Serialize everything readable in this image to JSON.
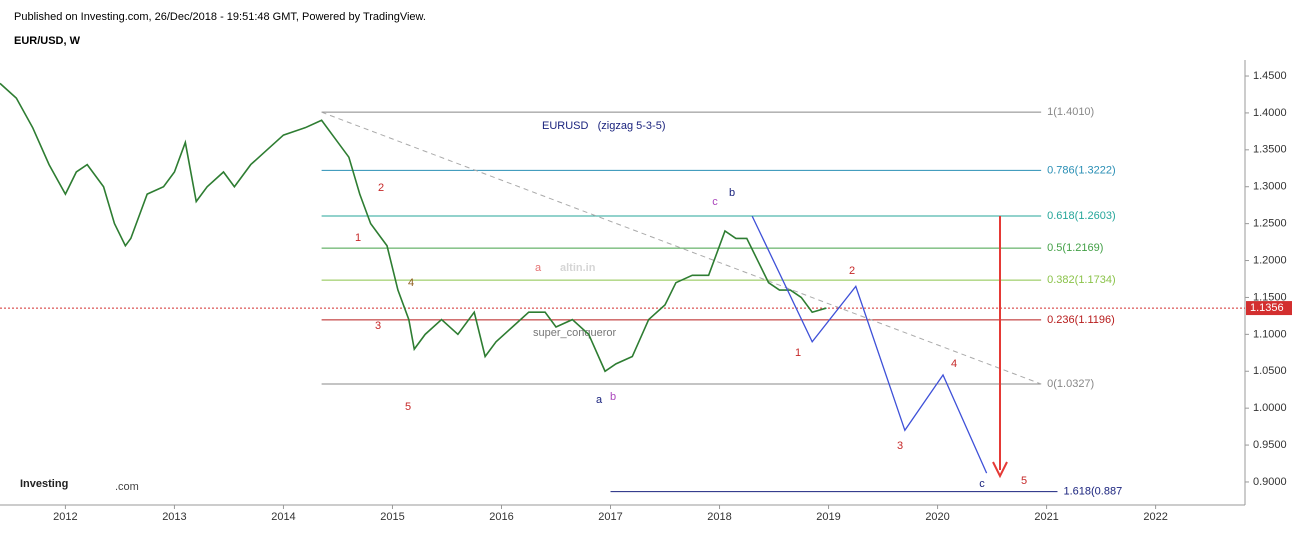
{
  "header": {
    "published": "Published on Investing.com, 26/Dec/2018 - 19:51:48 GMT, Powered by TradingView.",
    "symbol": "EUR/USD, W",
    "logo": "Investing",
    "logo_suffix": ".com"
  },
  "chart_data": {
    "type": "line",
    "title": "EURUSD   (zigzag 5-3-5)",
    "watermark": [
      "altin.in",
      "super_conqueror"
    ],
    "x": [
      2011.4,
      2011.55,
      2011.7,
      2011.85,
      2012.0,
      2012.1,
      2012.2,
      2012.35,
      2012.45,
      2012.55,
      2012.6,
      2012.75,
      2012.9,
      2013.0,
      2013.1,
      2013.2,
      2013.3,
      2013.45,
      2013.55,
      2013.7,
      2013.85,
      2014.0,
      2014.2,
      2014.35,
      2014.5,
      2014.6,
      2014.7,
      2014.8,
      2014.95,
      2015.05,
      2015.15,
      2015.2,
      2015.3,
      2015.45,
      2015.6,
      2015.75,
      2015.85,
      2015.95,
      2016.1,
      2016.25,
      2016.4,
      2016.5,
      2016.65,
      2016.8,
      2016.95,
      2017.05,
      2017.2,
      2017.35,
      2017.5,
      2017.6,
      2017.75,
      2017.9,
      2018.05,
      2018.15,
      2018.25,
      2018.35,
      2018.45,
      2018.55,
      2018.65,
      2018.75,
      2018.85,
      2018.98
    ],
    "values": [
      1.44,
      1.42,
      1.38,
      1.33,
      1.29,
      1.32,
      1.33,
      1.3,
      1.25,
      1.22,
      1.23,
      1.29,
      1.3,
      1.32,
      1.36,
      1.28,
      1.3,
      1.32,
      1.3,
      1.33,
      1.35,
      1.37,
      1.38,
      1.39,
      1.36,
      1.34,
      1.29,
      1.25,
      1.22,
      1.16,
      1.12,
      1.08,
      1.1,
      1.12,
      1.1,
      1.13,
      1.07,
      1.09,
      1.11,
      1.13,
      1.13,
      1.11,
      1.12,
      1.1,
      1.05,
      1.06,
      1.07,
      1.12,
      1.14,
      1.17,
      1.18,
      1.18,
      1.24,
      1.23,
      1.23,
      1.2,
      1.17,
      1.16,
      1.16,
      1.15,
      1.13,
      1.1356
    ],
    "color": "#2e7d32",
    "projection": {
      "x": [
        2018.3,
        2018.85,
        2019.25,
        2019.7,
        2020.05,
        2020.45
      ],
      "values": [
        1.26,
        1.09,
        1.165,
        0.97,
        1.045,
        0.912
      ],
      "color": "#3f51d8"
    },
    "last_price": {
      "value": 1.1356,
      "label": "1.1356",
      "color": "#d32f2f"
    },
    "fib_levels": [
      {
        "value": 1.401,
        "label": "1(1.4010)",
        "color": "#888888"
      },
      {
        "value": 1.3222,
        "label": "0.786(1.3222)",
        "color": "#2a8fb5"
      },
      {
        "value": 1.2603,
        "label": "0.618(1.2603)",
        "color": "#26a69a"
      },
      {
        "value": 1.2169,
        "label": "0.5(1.2169)",
        "color": "#43a047"
      },
      {
        "value": 1.1734,
        "label": "0.382(1.1734)",
        "color": "#8bc34a"
      },
      {
        "value": 1.1196,
        "label": "0.236(1.1196)",
        "color": "#b71c1c"
      },
      {
        "value": 1.0327,
        "label": "0(1.0327)",
        "color": "#888888"
      },
      {
        "value": 0.887,
        "label": "1.618(0.887",
        "color": "#1a237e"
      }
    ],
    "wave_labels": [
      "2",
      "1",
      "4",
      "3",
      "5",
      "a",
      "a",
      "b",
      "c",
      "b",
      "1",
      "2",
      "3",
      "4",
      "c",
      "5"
    ],
    "xlim": [
      2011.4,
      2022.82
    ],
    "ylim": [
      0.8688,
      1.4717
    ],
    "xticks": [
      2012,
      2013,
      2014,
      2015,
      2016,
      2017,
      2018,
      2019,
      2020,
      2021,
      2022
    ],
    "yticks": [
      {
        "value": 0.9,
        "label": "0.9000"
      },
      {
        "value": 0.95,
        "label": "0.9500"
      },
      {
        "value": 1.0,
        "label": "1.0000"
      },
      {
        "value": 1.05,
        "label": "1.0500"
      },
      {
        "value": 1.1,
        "label": "1.1000"
      },
      {
        "value": 1.15,
        "label": "1.1500"
      },
      {
        "value": 1.2,
        "label": "1.2000"
      },
      {
        "value": 1.25,
        "label": "1.2500"
      },
      {
        "value": 1.3,
        "label": "1.3000"
      },
      {
        "value": 1.35,
        "label": "1.3500"
      },
      {
        "value": 1.4,
        "label": "1.4000"
      },
      {
        "value": 1.45,
        "label": "1.4500"
      }
    ]
  }
}
